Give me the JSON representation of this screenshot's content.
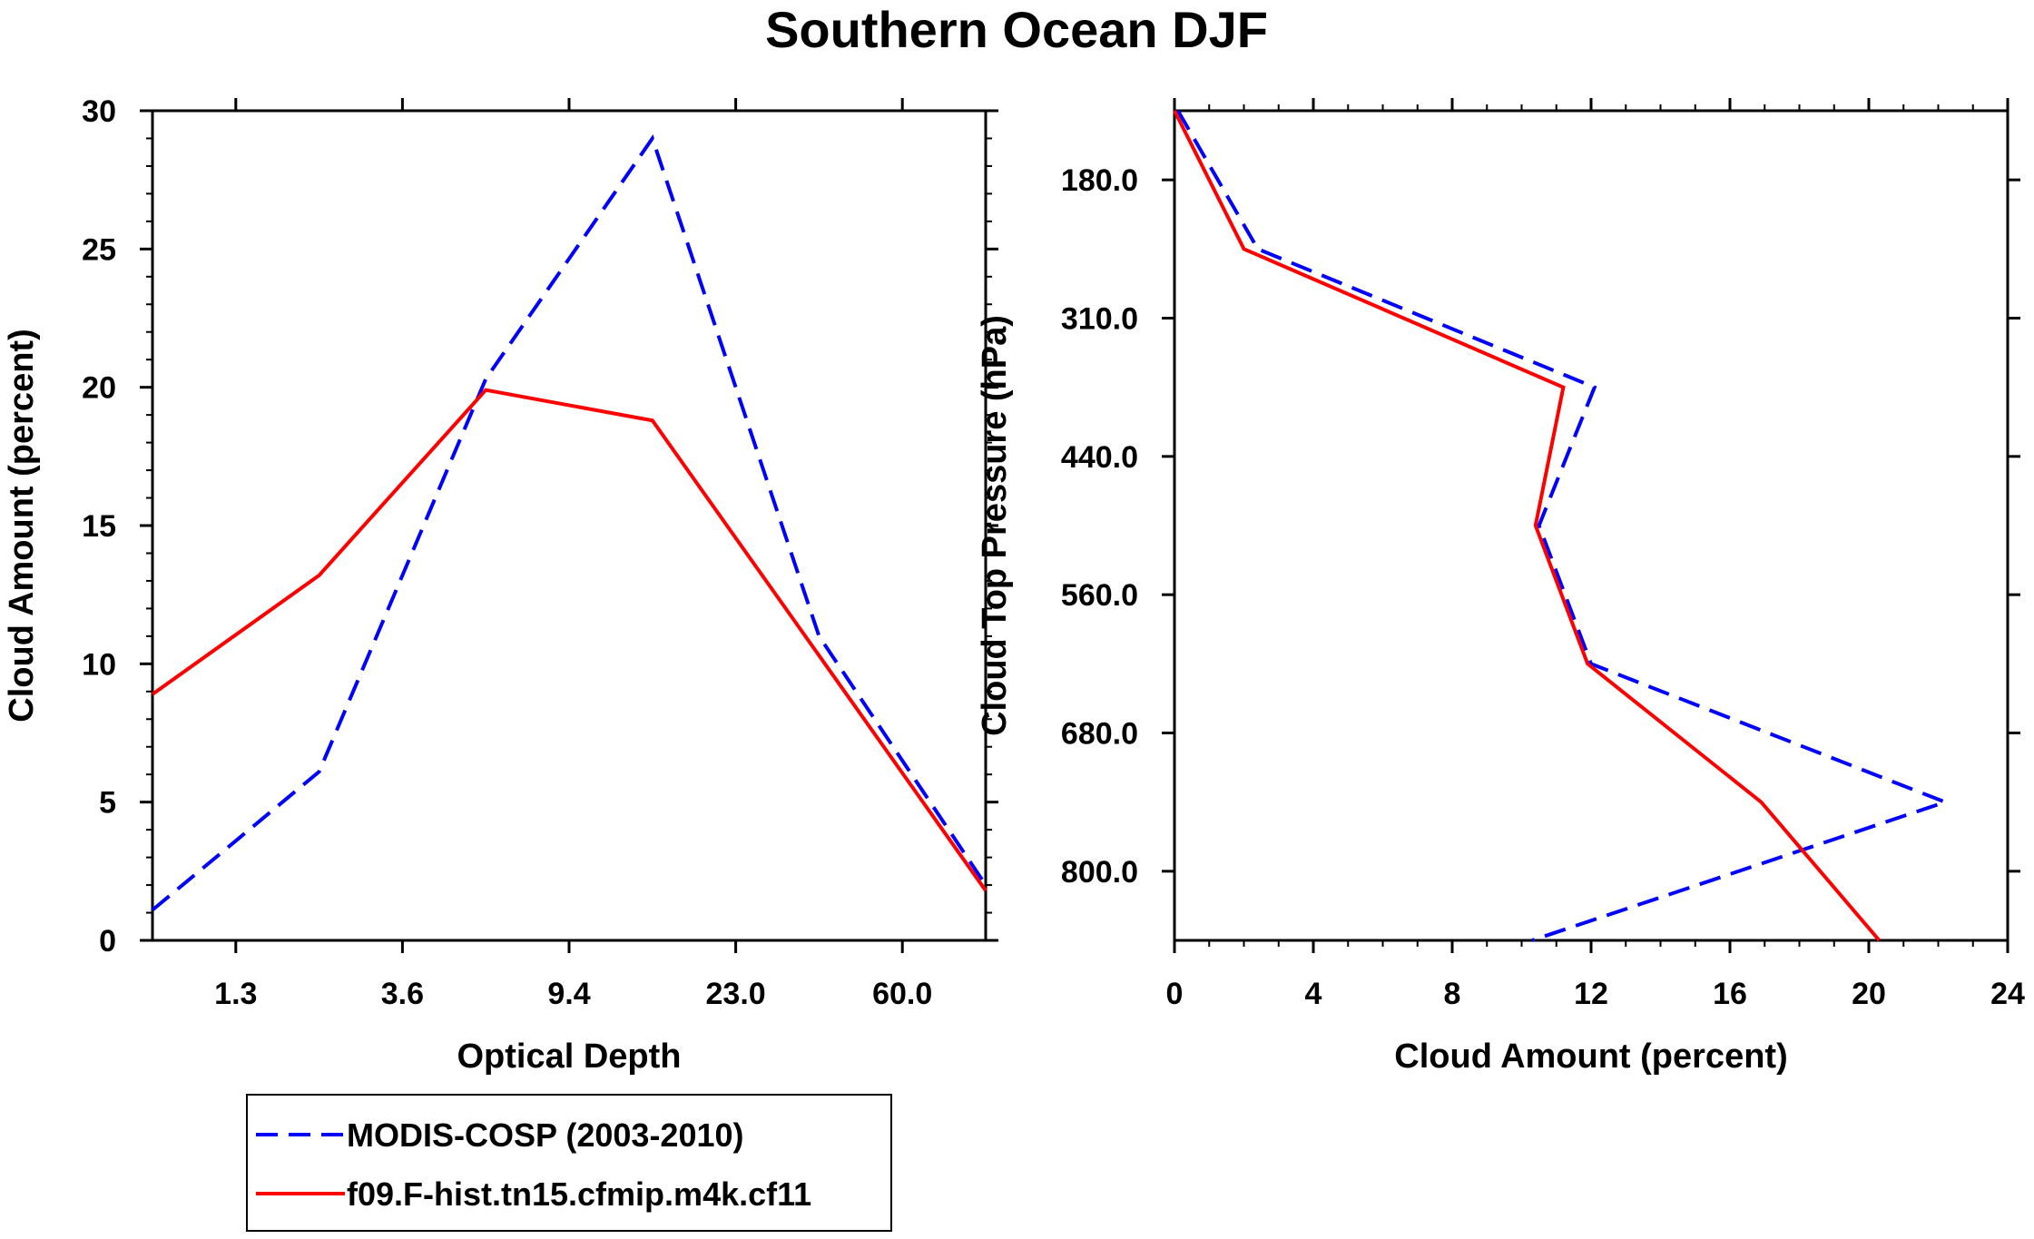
{
  "figure": {
    "title": "Southern Ocean DJF"
  },
  "chart_data": [
    {
      "type": "line",
      "title": "",
      "xlabel": "Optical Depth",
      "ylabel": "Cloud Amount (percent)",
      "x_categories_note": "bins",
      "x": [
        0,
        1,
        2,
        3,
        4,
        5
      ],
      "xlim": [
        0,
        5
      ],
      "xtick_positions": [
        0.5,
        1.5,
        2.5,
        3.5,
        4.5
      ],
      "xtick_labels": [
        "1.3",
        "3.6",
        "9.4",
        "23.0",
        "60.0"
      ],
      "ylim": [
        0,
        30
      ],
      "yticks": [
        0,
        5,
        10,
        15,
        20,
        25,
        30
      ],
      "ytick_labels": [
        "0",
        "5",
        "10",
        "15",
        "20",
        "25",
        "30"
      ],
      "series": [
        {
          "name": "MODIS-COSP (2003-2010)",
          "color": "#0000ff",
          "dash": true,
          "values": [
            1.1,
            6.1,
            20.3,
            29.0,
            11.0,
            2.0
          ]
        },
        {
          "name": "f09.F-hist.tn15.cfmip.m4k.cf11",
          "color": "#ff0000",
          "dash": false,
          "values": [
            8.9,
            13.2,
            19.9,
            18.8,
            10.3,
            1.8
          ]
        }
      ]
    },
    {
      "type": "line",
      "title": "",
      "xlabel": "Cloud Amount (percent)",
      "ylabel": "Cloud Top Pressure (hPa)",
      "xlim": [
        0,
        24
      ],
      "xticks": [
        0,
        4,
        8,
        12,
        16,
        20,
        24
      ],
      "xtick_labels": [
        "0",
        "4",
        "8",
        "12",
        "16",
        "20",
        "24"
      ],
      "ylim_levels": [
        0,
        6
      ],
      "ytick_positions": [
        0.5,
        1.5,
        2.5,
        3.5,
        4.5,
        5.5
      ],
      "ytick_labels": [
        "180.0",
        "310.0",
        "440.0",
        "560.0",
        "680.0",
        "800.0"
      ],
      "levels": [
        0,
        1,
        2,
        3,
        4,
        5,
        6
      ],
      "series": [
        {
          "name": "MODIS-COSP (2003-2010)",
          "color": "#0000ff",
          "dash": true,
          "values": [
            0.1,
            2.4,
            12.1,
            10.5,
            12.0,
            22.2,
            10.3
          ]
        },
        {
          "name": "f09.F-hist.tn15.cfmip.m4k.cf11",
          "color": "#ff0000",
          "dash": false,
          "values": [
            0.0,
            2.0,
            11.2,
            10.4,
            11.9,
            16.9,
            20.3
          ]
        }
      ]
    }
  ],
  "legend": {
    "entries": [
      {
        "label": "MODIS-COSP (2003-2010)",
        "color": "#0000ff",
        "dash": true
      },
      {
        "label": "f09.F-hist.tn15.cfmip.m4k.cf11",
        "color": "#ff0000",
        "dash": false
      }
    ]
  }
}
